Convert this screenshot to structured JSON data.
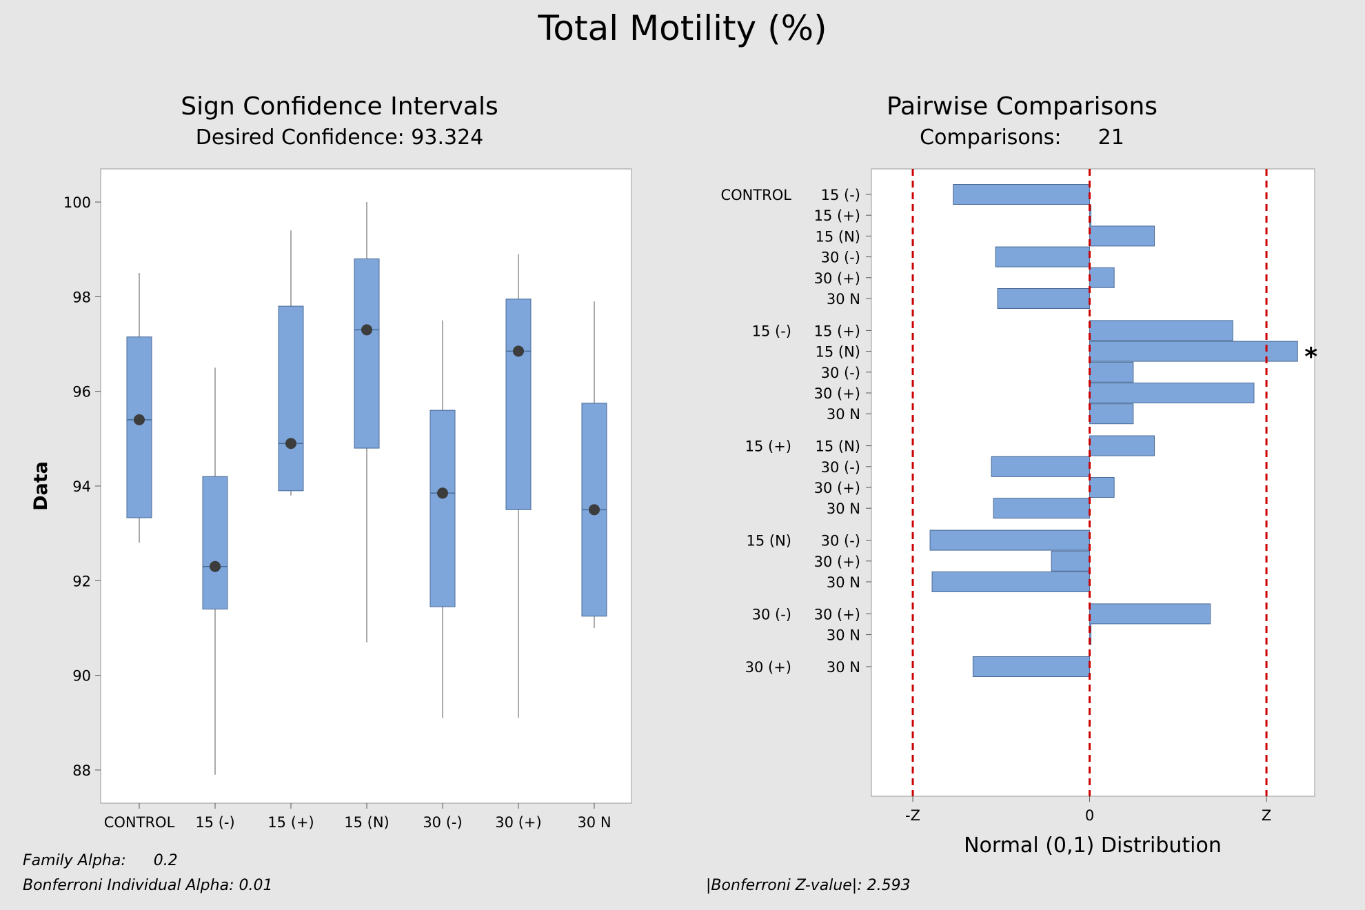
{
  "page_title": "Total Motility (%)",
  "left_panel": {
    "title": "Sign Confidence Intervals",
    "subtitle": "Desired Confidence: 93.324",
    "footer_family_alpha_label": "Family Alpha:",
    "footer_family_alpha_value": "0.2",
    "footer_bonferroni": "Bonferroni Individual Alpha: 0.01"
  },
  "right_panel": {
    "title": "Pairwise Comparisons",
    "subtitle_label": "Comparisons:",
    "subtitle_value": "21",
    "footer_zvalue": "|Bonferroni Z-value|: 2.593"
  },
  "colors": {
    "box_fill": "#7ea6db",
    "box_stroke": "#4a6a95",
    "median_dot": "#3c3c3c",
    "ref_line": "#cc0000",
    "background": "#e6e6e6",
    "plot_bg": "#ffffff"
  },
  "chart_data": [
    {
      "type": "box",
      "ylabel": "Data",
      "ylim": [
        87.3,
        100.7
      ],
      "yticks": [
        88,
        90,
        92,
        94,
        96,
        98,
        100
      ],
      "categories": [
        "CONTROL",
        "15 (-)",
        "15 (+)",
        "15 (N)",
        "30 (-)",
        "30 (+)",
        "30 N"
      ],
      "series": [
        {
          "category": "CONTROL",
          "whisker_low": 92.8,
          "ci_low": 93.33,
          "median": 95.4,
          "ci_high": 97.15,
          "whisker_high": 98.5
        },
        {
          "category": "15 (-)",
          "whisker_low": 87.9,
          "ci_low": 91.4,
          "median": 92.3,
          "ci_high": 94.2,
          "whisker_high": 96.5
        },
        {
          "category": "15 (+)",
          "whisker_low": 93.8,
          "ci_low": 93.9,
          "median": 94.9,
          "ci_high": 97.8,
          "whisker_high": 99.4
        },
        {
          "category": "15 (N)",
          "whisker_low": 90.7,
          "ci_low": 94.8,
          "median": 97.3,
          "ci_high": 98.8,
          "whisker_high": 100.0
        },
        {
          "category": "30 (-)",
          "whisker_low": 89.1,
          "ci_low": 91.45,
          "median": 93.85,
          "ci_high": 95.6,
          "whisker_high": 97.5
        },
        {
          "category": "30 (+)",
          "whisker_low": 89.1,
          "ci_low": 93.5,
          "median": 96.85,
          "ci_high": 97.95,
          "whisker_high": 98.9
        },
        {
          "category": "30 N",
          "whisker_low": 91.0,
          "ci_low": 91.25,
          "median": 93.5,
          "ci_high": 95.75,
          "whisker_high": 97.9
        }
      ]
    },
    {
      "type": "bar",
      "orientation": "horizontal",
      "xlabel": "Normal (0,1) Distribution",
      "xlim": [
        -3.2,
        3.3
      ],
      "critical_z": 2.593,
      "xtick_labels": [
        "-Z",
        "0",
        "Z"
      ],
      "groups": [
        {
          "label": "CONTROL",
          "items": [
            {
              "label": "15 (-)",
              "value": -2.0
            },
            {
              "label": "15 (+)",
              "value": 0.02
            },
            {
              "label": "15 (N)",
              "value": 0.95
            },
            {
              "label": "30 (-)",
              "value": -1.38
            },
            {
              "label": "30 (+)",
              "value": 0.36
            },
            {
              "label": "30 N",
              "value": -1.35
            }
          ]
        },
        {
          "label": "15 (-)",
          "items": [
            {
              "label": "15 (+)",
              "value": 2.1
            },
            {
              "label": "15 (N)",
              "value": 3.05,
              "marker": "*"
            },
            {
              "label": "30 (-)",
              "value": 0.64
            },
            {
              "label": "30 (+)",
              "value": 2.41
            },
            {
              "label": "30 N",
              "value": 0.64
            }
          ]
        },
        {
          "label": "15 (+)",
          "items": [
            {
              "label": "15 (N)",
              "value": 0.95
            },
            {
              "label": "30 (-)",
              "value": -1.44
            },
            {
              "label": "30 (+)",
              "value": 0.36
            },
            {
              "label": "30 N",
              "value": -1.41
            }
          ]
        },
        {
          "label": "15 (N)",
          "items": [
            {
              "label": "30 (-)",
              "value": -2.34
            },
            {
              "label": "30 (+)",
              "value": -0.56
            },
            {
              "label": "30 N",
              "value": -2.31
            }
          ]
        },
        {
          "label": "30 (-)",
          "items": [
            {
              "label": "30 (+)",
              "value": 1.77
            },
            {
              "label": "30 N",
              "value": 0.02
            }
          ]
        },
        {
          "label": "30 (+)",
          "items": [
            {
              "label": "30 N",
              "value": -1.71
            }
          ]
        }
      ]
    }
  ]
}
